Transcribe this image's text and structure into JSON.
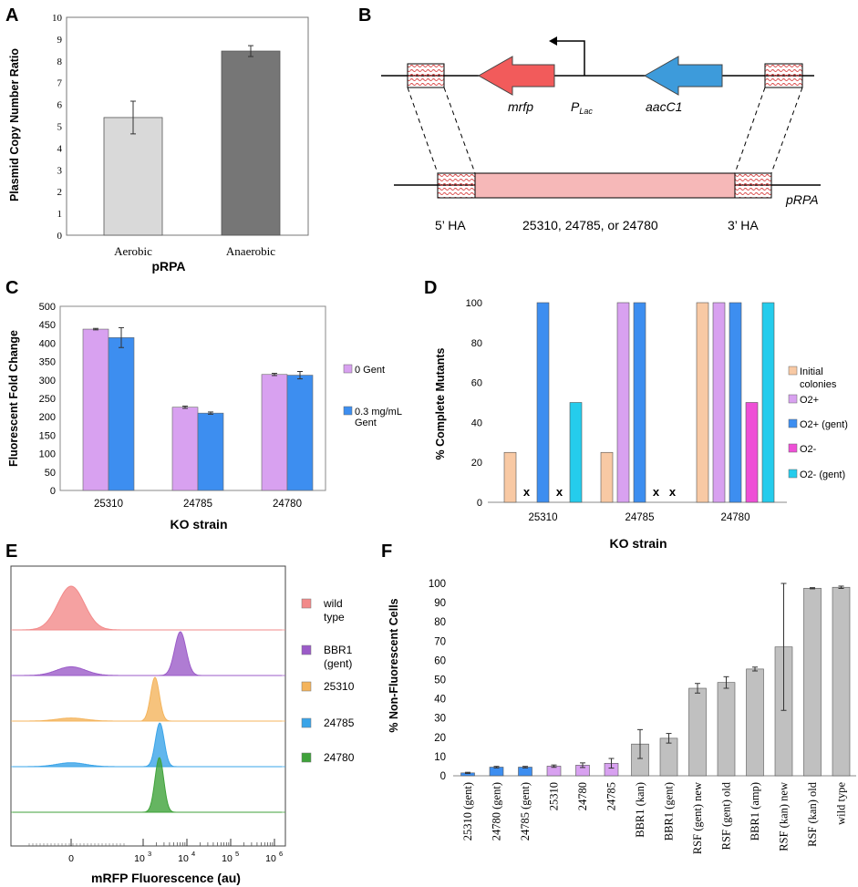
{
  "panel_letters": {
    "A": "A",
    "B": "B",
    "C": "C",
    "D": "D",
    "E": "E",
    "F": "F"
  },
  "colors": {
    "aerobic": "#d9d9d9",
    "anaerobic": "#767676",
    "gent0": "#d8a1f0",
    "gent03": "#3d8ef0",
    "initial": "#f8c9a4",
    "o2plus": "#d8a1f0",
    "o2plusgent": "#3d8ef0",
    "o2minus": "#ee4fd6",
    "o2minusgent": "#25ccec",
    "wild_type": "#f28a8a",
    "bbr1": "#9b5bc8",
    "s25310": "#f4b45c",
    "s24785": "#3aa4e8",
    "s24780": "#3fa23a",
    "mrfp": "#f25b5b",
    "aacc1": "#3d9bdb",
    "pink_region": "#f6b8b8",
    "hatch": "#d94646",
    "f_blue": "#3d8ef0",
    "f_pink": "#d8a1f0",
    "f_gray": "#c0c0c0"
  },
  "chart_data": [
    {
      "id": "A",
      "type": "bar",
      "categories": [
        "Aerobic",
        "Anaerobic"
      ],
      "values": [
        5.4,
        8.45
      ],
      "errors": [
        0.75,
        0.25
      ],
      "xlabel": "pRPA",
      "ylabel": "Plasmid Copy Number Ratio",
      "ylim": [
        0,
        10
      ],
      "yticks": [
        "0",
        "1",
        "2",
        "3",
        "4",
        "5",
        "6",
        "7",
        "8",
        "9",
        "10"
      ]
    },
    {
      "id": "C",
      "type": "bar",
      "categories": [
        "25310",
        "24785",
        "24780"
      ],
      "series": [
        {
          "name": "0 Gent",
          "values": [
            438,
            226,
            315
          ],
          "errors": [
            2,
            3,
            3
          ]
        },
        {
          "name": "0.3 mg/mL Gent",
          "values": [
            415,
            210,
            313
          ],
          "errors": [
            27,
            3,
            10
          ]
        }
      ],
      "legend_lines": [
        [
          "0 Gent"
        ],
        [
          "0.3 mg/mL",
          "Gent"
        ]
      ],
      "xlabel": "KO strain",
      "ylabel": "Fluorescent Fold Change",
      "ylim": [
        0,
        500
      ],
      "yticks": [
        "0",
        "50",
        "100",
        "150",
        "200",
        "250",
        "300",
        "350",
        "400",
        "450",
        "500"
      ]
    },
    {
      "id": "D",
      "type": "bar",
      "categories": [
        "25310",
        "24785",
        "24780"
      ],
      "series": [
        {
          "name": "Initial colonies",
          "values": [
            25,
            25,
            100
          ]
        },
        {
          "name": "O2+",
          "values": [
            0,
            100,
            100
          ]
        },
        {
          "name": "O2+ (gent)",
          "values": [
            100,
            100,
            100
          ]
        },
        {
          "name": "O2-",
          "values": [
            0,
            0,
            50
          ]
        },
        {
          "name": "O2- (gent)",
          "values": [
            50,
            0,
            100
          ]
        }
      ],
      "legend_lines": [
        [
          "Initial",
          "colonies"
        ],
        [
          "O2+"
        ],
        [
          "O2+ (gent)"
        ],
        [
          "O2-"
        ],
        [
          "O2- (gent)"
        ]
      ],
      "missing_mark": "x",
      "xlabel": "KO strain",
      "ylabel": "% Complete Mutants",
      "ylim": [
        0,
        100
      ],
      "yticks": [
        "0",
        "20",
        "40",
        "60",
        "80",
        "100"
      ]
    },
    {
      "id": "E",
      "type": "area",
      "xlabel": "mRFP Fluorescence (au)",
      "xscale": "biexponential",
      "xtick_labels": [
        [
          "0",
          ""
        ],
        [
          "10",
          "3"
        ],
        [
          "10",
          "4"
        ],
        [
          "10",
          "5"
        ],
        [
          "10",
          "6"
        ]
      ],
      "series": [
        {
          "name": "wild type",
          "legend_lines": [
            "wild",
            "type"
          ],
          "peaks": [
            {
              "center": 0.0,
              "width": 0.55,
              "height": 1.0
            }
          ]
        },
        {
          "name": "BBR1 (gent)",
          "legend_lines": [
            "BBR1",
            "(gent)"
          ],
          "peaks": [
            {
              "center": 3.85,
              "width": 0.13,
              "height": 1.0
            },
            {
              "center": 0.0,
              "width": 0.6,
              "height": 0.2
            }
          ]
        },
        {
          "name": "25310",
          "legend_lines": [
            "25310"
          ],
          "peaks": [
            {
              "center": 3.27,
              "width": 0.1,
              "height": 1.0
            },
            {
              "center": 0.0,
              "width": 0.6,
              "height": 0.07
            }
          ]
        },
        {
          "name": "24785",
          "legend_lines": [
            "24785"
          ],
          "peaks": [
            {
              "center": 3.38,
              "width": 0.1,
              "height": 1.0
            },
            {
              "center": 0.0,
              "width": 0.6,
              "height": 0.09
            }
          ]
        },
        {
          "name": "24780",
          "legend_lines": [
            "24780"
          ],
          "peaks": [
            {
              "center": 3.37,
              "width": 0.1,
              "height": 1.0
            }
          ]
        }
      ]
    },
    {
      "id": "F",
      "type": "bar",
      "categories": [
        "25310 (gent)",
        "24780 (gent)",
        "24785 (gent)",
        "25310",
        "24780",
        "24785",
        "BBR1 (kan)",
        "BBR1 (gent)",
        "RSF (gent) new",
        "RSF (gent) old",
        "BBR1 (amp)",
        "RSF (kan) new",
        "RSF (kan) old",
        "wild type"
      ],
      "values": [
        1.5,
        4.5,
        4.5,
        5,
        5.5,
        6.5,
        16.5,
        19.5,
        45.5,
        48.5,
        55.5,
        67,
        97.5,
        98
      ],
      "errors": [
        0.3,
        0.4,
        0.4,
        0.6,
        1.2,
        2.5,
        7.5,
        2.5,
        2.5,
        3,
        1,
        33,
        0.3,
        0.6
      ],
      "color_groups": [
        "blue",
        "blue",
        "blue",
        "pink",
        "pink",
        "pink",
        "gray",
        "gray",
        "gray",
        "gray",
        "gray",
        "gray",
        "gray",
        "gray"
      ],
      "ylabel": "% Non-Fluorescent Cells",
      "ylim": [
        0,
        100
      ],
      "yticks": [
        "0",
        "10",
        "20",
        "30",
        "40",
        "50",
        "60",
        "70",
        "80",
        "90",
        "100"
      ]
    }
  ],
  "diagram": {
    "mrfp": "mrfp",
    "plac_main": "P",
    "plac_sub": "Lac",
    "aacc1": "aacC1",
    "prpa": "pRPA",
    "ha5": "5’ HA",
    "middle": "25310, 24785, or 24780",
    "ha3": "3’ HA"
  }
}
